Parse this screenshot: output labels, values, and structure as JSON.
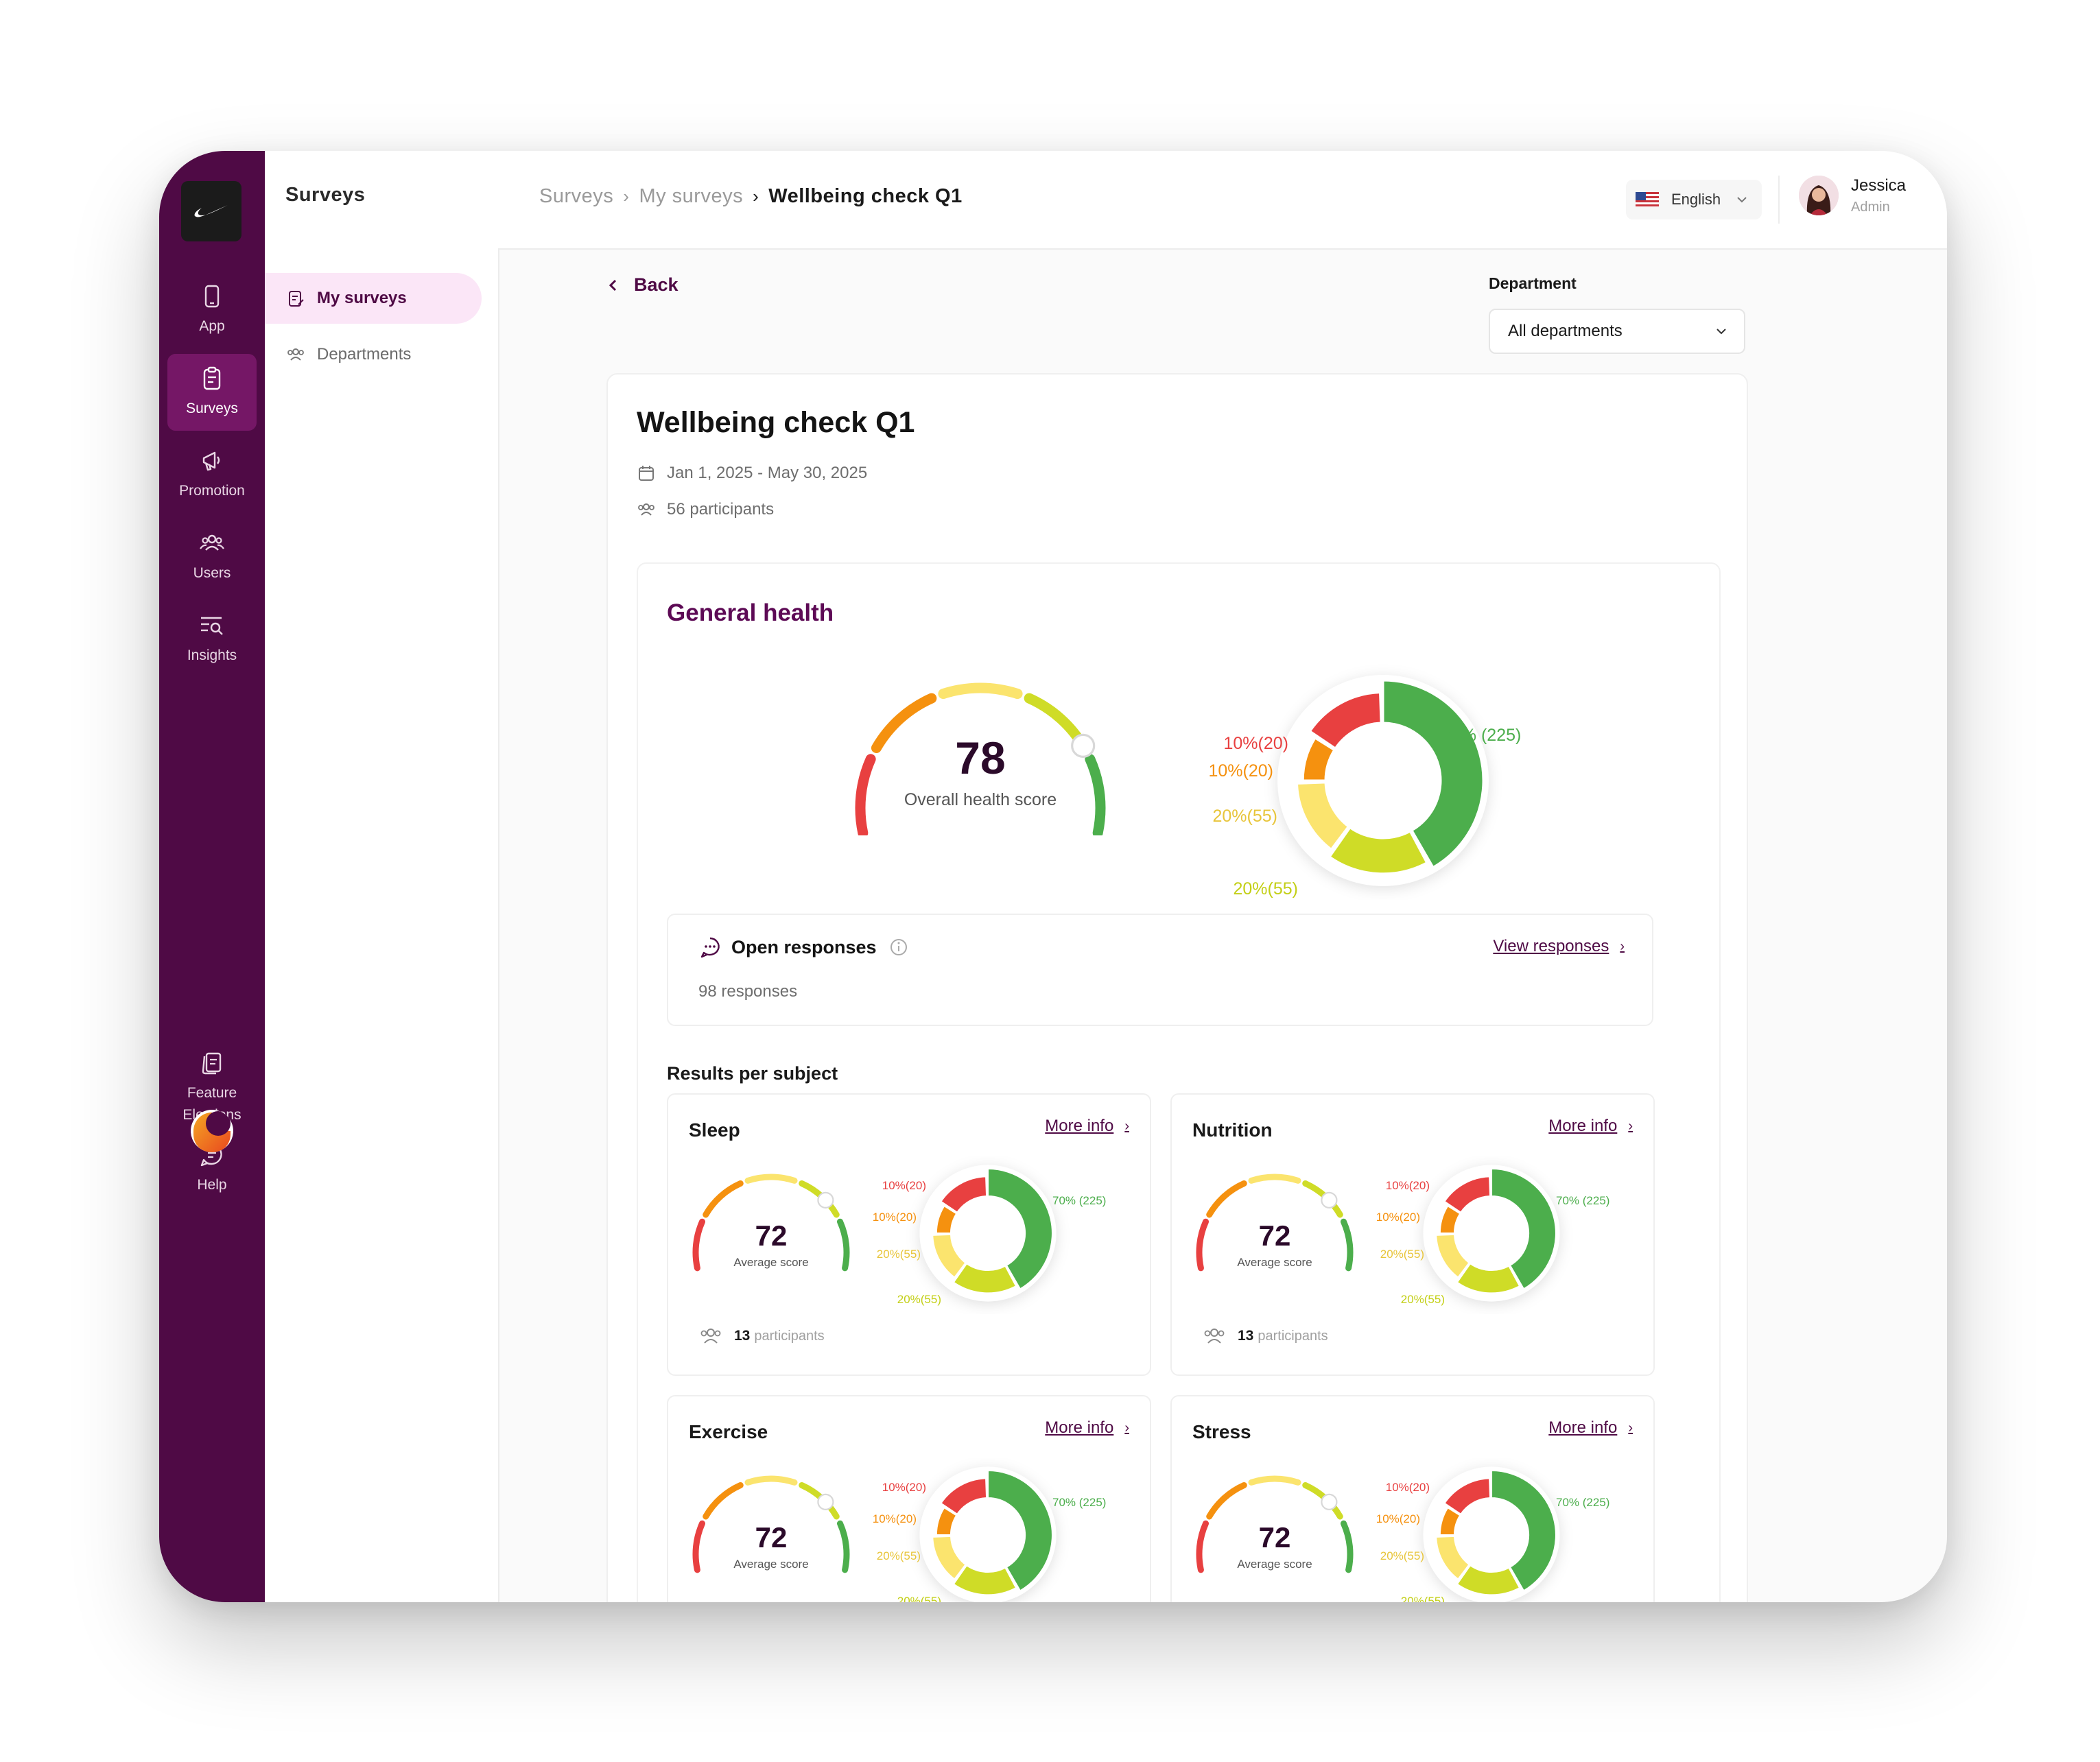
{
  "rail": {
    "items": [
      {
        "label": "App",
        "icon": "phone-icon"
      },
      {
        "label": "Surveys",
        "icon": "clipboard-icon"
      },
      {
        "label": "Promotion",
        "icon": "megaphone-icon"
      },
      {
        "label": "Users",
        "icon": "users-icon"
      },
      {
        "label": "Insights",
        "icon": "insights-icon"
      },
      {
        "label": "Feature Elections",
        "icon": "documents-icon"
      },
      {
        "label": "Help",
        "icon": "chat-icon"
      }
    ],
    "active": "Surveys"
  },
  "subnav": {
    "title": "Surveys",
    "items": [
      {
        "label": "My surveys",
        "icon": "clipboard-icon",
        "active": true
      },
      {
        "label": "Departments",
        "icon": "users-icon",
        "active": false
      }
    ]
  },
  "breadcrumbs": [
    "Surveys",
    "My surveys",
    "Wellbeing check Q1"
  ],
  "language": {
    "label": "English",
    "flag": "us-flag-icon"
  },
  "user": {
    "name": "Jessica",
    "role": "Admin"
  },
  "back_label": "Back",
  "department": {
    "label": "Department",
    "value": "All departments"
  },
  "survey": {
    "title": "Wellbeing check Q1",
    "dates": "Jan 1, 2025 - May 30, 2025",
    "participants": "56 participants"
  },
  "general": {
    "title": "General health",
    "score": "78",
    "score_label": "Overall health score",
    "score_value": 78
  },
  "open_responses": {
    "title": "Open responses",
    "count": "98 responses",
    "link": "View responses"
  },
  "results_title": "Results per subject",
  "more_info_label": "More info",
  "subjects": [
    {
      "name": "Sleep",
      "score": "72",
      "score_label": "Average score",
      "participants_count": "13",
      "participants_label": "participants"
    },
    {
      "name": "Nutrition",
      "score": "72",
      "score_label": "Average score",
      "participants_count": "13",
      "participants_label": "participants"
    },
    {
      "name": "Exercise",
      "score": "72",
      "score_label": "Average score"
    },
    {
      "name": "Stress",
      "score": "72",
      "score_label": "Average score"
    }
  ],
  "colors": {
    "brand": "#4f0a45",
    "red": "#e84040",
    "orange": "#f5910f",
    "yellow": "#fbe46e",
    "lime": "#cfdc27",
    "green": "#4cae4c"
  },
  "chart_data": {
    "type": "pie",
    "style": "donut",
    "series": [
      {
        "label": "10%(20)",
        "percent": 10,
        "count": 20,
        "color": "#e84040"
      },
      {
        "label": "10%(20)",
        "percent": 10,
        "count": 20,
        "color": "#f5910f"
      },
      {
        "label": "20%(55)",
        "percent": 20,
        "count": 55,
        "color": "#fbe46e"
      },
      {
        "label": "20%(55)",
        "percent": 20,
        "count": 55,
        "color": "#cfdc27"
      },
      {
        "label": "70% (225)",
        "percent": 70,
        "count": 225,
        "color": "#4cae4c"
      }
    ]
  }
}
